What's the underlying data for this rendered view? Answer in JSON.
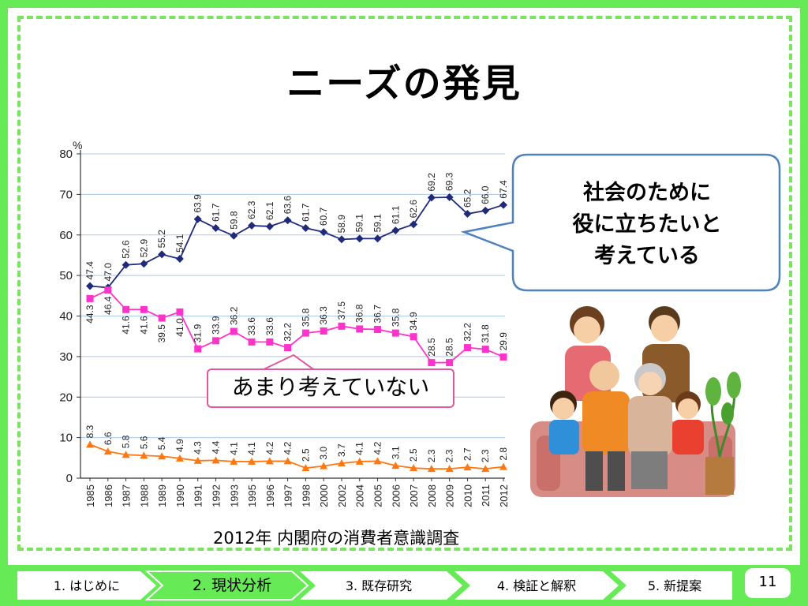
{
  "slide": {
    "title": "ニーズの発見",
    "source": "2012年 内閣府の消費者意識調査",
    "callout_positive": "社会のために\n役に立ちたいと\n考えている",
    "callout_negative": "あまり考えていない",
    "page_number": "11"
  },
  "nav": {
    "items": [
      {
        "label": "1. はじめに",
        "active": false
      },
      {
        "label": "2.  現状分析",
        "active": true
      },
      {
        "label": "3. 既存研究",
        "active": false
      },
      {
        "label": "4. 検証と解釈",
        "active": false
      },
      {
        "label": "5. 新提案",
        "active": false
      }
    ]
  },
  "colors": {
    "background": "#66ea55",
    "series_1": "#1f2a7a",
    "series_2": "#ff33cc",
    "series_3": "#ff7711",
    "grid": "#a9c8ea",
    "callout_border_blue": "#4f81bd",
    "callout_border_pink": "#e0589b"
  },
  "chart_data": {
    "type": "line",
    "ylabel": "%",
    "ylim": [
      0,
      80
    ],
    "yticks": [
      0,
      10,
      20,
      30,
      40,
      50,
      60,
      70,
      80
    ],
    "grid": true,
    "x": [
      "1985",
      "1986",
      "1987",
      "1988",
      "1989",
      "1990",
      "1991",
      "1992",
      "1993",
      "1995",
      "1996",
      "1997",
      "1998",
      "2000",
      "2002",
      "2004",
      "2005",
      "2006",
      "2007",
      "2008",
      "2009",
      "2010",
      "2011",
      "2012"
    ],
    "series": [
      {
        "marker": "diamond",
        "color": "#1f2a7a",
        "label_position": "above",
        "values": [
          47.4,
          47.0,
          52.6,
          52.9,
          55.2,
          54.1,
          63.9,
          61.7,
          59.8,
          62.3,
          62.1,
          63.6,
          61.7,
          60.7,
          58.9,
          59.1,
          59.1,
          61.1,
          62.6,
          69.2,
          69.3,
          65.2,
          66.0,
          67.4
        ]
      },
      {
        "marker": "square",
        "color": "#ff33cc",
        "label_position": "below_then_above",
        "values": [
          44.3,
          46.4,
          41.6,
          41.6,
          39.5,
          41.0,
          31.9,
          33.9,
          36.2,
          33.6,
          33.6,
          32.2,
          35.8,
          36.3,
          37.5,
          36.8,
          36.7,
          35.8,
          34.9,
          28.5,
          28.5,
          32.2,
          31.8,
          29.9
        ]
      },
      {
        "marker": "triangle",
        "color": "#ff7711",
        "label_position": "above",
        "values": [
          8.3,
          6.6,
          5.8,
          5.6,
          5.4,
          4.9,
          4.3,
          4.4,
          4.1,
          4.1,
          4.2,
          4.2,
          2.5,
          3.0,
          3.7,
          4.1,
          4.2,
          3.1,
          2.5,
          2.3,
          2.3,
          2.7,
          2.3,
          2.8
        ]
      }
    ]
  }
}
